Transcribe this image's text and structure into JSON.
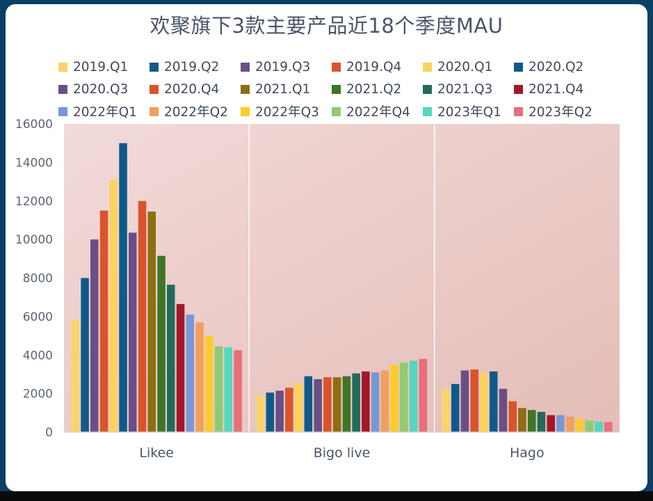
{
  "chart_data": {
    "type": "bar",
    "title": "欢聚旗下3款主要产品近18个季度MAU",
    "xlabel": "",
    "ylabel": "",
    "ylim": [
      0,
      16000
    ],
    "yticks": [
      0,
      2000,
      4000,
      6000,
      8000,
      10000,
      12000,
      14000,
      16000
    ],
    "categories": [
      "Likee",
      "Bigo live",
      "Hago"
    ],
    "legend_position": "top",
    "grid": false,
    "series": [
      {
        "name": "2019.Q1",
        "color": "#f9d46b",
        "values": [
          5850,
          1900,
          2250
        ]
      },
      {
        "name": "2019.Q2",
        "color": "#0e5a8a",
        "values": [
          8000,
          2050,
          2500
        ]
      },
      {
        "name": "2019.Q3",
        "color": "#6a4f86",
        "values": [
          10000,
          2150,
          3200
        ]
      },
      {
        "name": "2019.Q4",
        "color": "#d9542c",
        "values": [
          11500,
          2300,
          3250
        ]
      },
      {
        "name": "2020.Q1",
        "color": "#fbd35c",
        "values": [
          13100,
          2550,
          3050
        ]
      },
      {
        "name": "2020.Q2",
        "color": "#0e5a8a",
        "values": [
          15000,
          2900,
          3150
        ]
      },
      {
        "name": "2020.Q3",
        "color": "#6a4f86",
        "values": [
          10350,
          2750,
          2250
        ]
      },
      {
        "name": "2020.Q4",
        "color": "#d9542c",
        "values": [
          12000,
          2850,
          1600
        ]
      },
      {
        "name": "2021.Q1",
        "color": "#8b6f12",
        "values": [
          11450,
          2850,
          1250
        ]
      },
      {
        "name": "2021.Q2",
        "color": "#3f7527",
        "values": [
          9150,
          2900,
          1150
        ]
      },
      {
        "name": "2021.Q3",
        "color": "#226b5c",
        "values": [
          7650,
          3050,
          1050
        ]
      },
      {
        "name": "2021.Q4",
        "color": "#a3172a",
        "values": [
          6650,
          3150,
          880
        ]
      },
      {
        "name": "2022年Q1",
        "color": "#7798d6",
        "values": [
          6100,
          3100,
          880
        ]
      },
      {
        "name": "2022年Q2",
        "color": "#f0a05c",
        "values": [
          5700,
          3200,
          800
        ]
      },
      {
        "name": "2022年Q3",
        "color": "#fccc2c",
        "values": [
          5000,
          3500,
          700
        ]
      },
      {
        "name": "2022年Q4",
        "color": "#8fcb73",
        "values": [
          4450,
          3600,
          600
        ]
      },
      {
        "name": "2023年Q1",
        "color": "#55d6c0",
        "values": [
          4400,
          3700,
          550
        ]
      },
      {
        "name": "2023年Q2",
        "color": "#e86e7c",
        "values": [
          4250,
          3800,
          520
        ]
      }
    ]
  }
}
